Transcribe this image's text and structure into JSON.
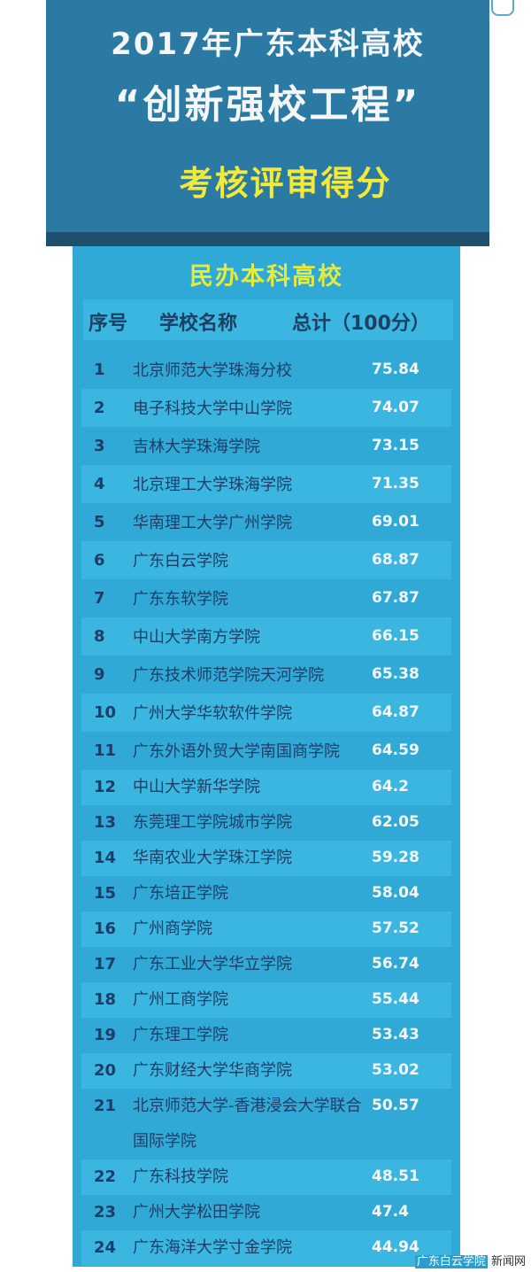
{
  "header": {
    "line1": "2017年广东本科高校",
    "line2": "“创新强校工程”",
    "line3": "考核评审得分"
  },
  "panel": {
    "subtitle": "民办本科高校",
    "columns": {
      "rank": "序号",
      "name": "学校名称",
      "score": "总计（100分）"
    },
    "rows": [
      {
        "rank": "1",
        "name": "北京师范大学珠海分校",
        "score": "75.84"
      },
      {
        "rank": "2",
        "name": "电子科技大学中山学院",
        "score": "74.07"
      },
      {
        "rank": "3",
        "name": "吉林大学珠海学院",
        "score": "73.15"
      },
      {
        "rank": "4",
        "name": "北京理工大学珠海学院",
        "score": "71.35"
      },
      {
        "rank": "5",
        "name": "华南理工大学广州学院",
        "score": "69.01"
      },
      {
        "rank": "6",
        "name": "广东白云学院",
        "score": "68.87"
      },
      {
        "rank": "7",
        "name": "广东东软学院",
        "score": "67.87"
      },
      {
        "rank": "8",
        "name": "中山大学南方学院",
        "score": "66.15"
      },
      {
        "rank": "9",
        "name": "广东技术师范学院天河学院",
        "score": "65.38"
      },
      {
        "rank": "10",
        "name": "广州大学华软软件学院",
        "score": "64.87"
      },
      {
        "rank": "11",
        "name": "广东外语外贸大学南国商学院",
        "score": "64.59"
      },
      {
        "rank": "12",
        "name": "中山大学新华学院",
        "score": "64.2"
      },
      {
        "rank": "13",
        "name": "东莞理工学院城市学院",
        "score": "62.05"
      },
      {
        "rank": "14",
        "name": "华南农业大学珠江学院",
        "score": "59.28"
      },
      {
        "rank": "15",
        "name": "广东培正学院",
        "score": "58.04"
      },
      {
        "rank": "16",
        "name": "广州商学院",
        "score": "57.52"
      },
      {
        "rank": "17",
        "name": "广东工业大学华立学院",
        "score": "56.74"
      },
      {
        "rank": "18",
        "name": "广州工商学院",
        "score": "55.44"
      },
      {
        "rank": "19",
        "name": "广东理工学院",
        "score": "53.43"
      },
      {
        "rank": "20",
        "name": "广东财经大学华商学院",
        "score": "53.02"
      },
      {
        "rank": "21",
        "name": "北京师范大学-香港浸会大学联合国际学院",
        "score": "50.57"
      },
      {
        "rank": "22",
        "name": "广东科技学院",
        "score": "48.51"
      },
      {
        "rank": "23",
        "name": "广州大学松田学院",
        "score": "47.4"
      },
      {
        "rank": "24",
        "name": "广东海洋大学寸金学院",
        "score": "44.94"
      }
    ]
  },
  "watermark": {
    "left": "广东白云学院",
    "right": "新闻网"
  },
  "colors": {
    "header_bg": "#2a7aa3",
    "panel_bg": "#31a9d6",
    "title_yellow": "#f2e93a",
    "rank_navy": "#1e3d66"
  }
}
